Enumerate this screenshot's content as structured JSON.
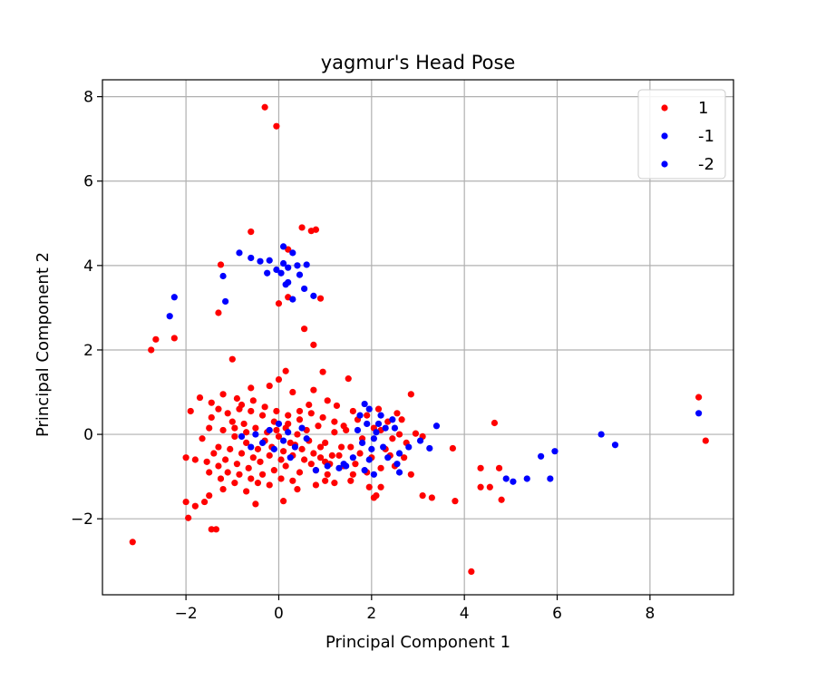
{
  "chart_data": {
    "type": "scatter",
    "title": "yagmur's Head Pose",
    "xlabel": "Principal Component 1",
    "ylabel": "Principal Component 2",
    "xlim": [
      -3.8,
      9.8
    ],
    "ylim": [
      -3.8,
      8.4
    ],
    "xticks": [
      -2,
      0,
      2,
      4,
      6,
      8
    ],
    "yticks": [
      -2,
      0,
      2,
      4,
      6,
      8
    ],
    "grid": true,
    "legend_position": "top-right",
    "series": [
      {
        "name": "1",
        "color": "#ff0000",
        "points": [
          [
            -0.3,
            7.75
          ],
          [
            -0.05,
            7.3
          ],
          [
            -0.6,
            4.8
          ],
          [
            0.5,
            4.9
          ],
          [
            0.7,
            4.82
          ],
          [
            0.8,
            4.85
          ],
          [
            -1.25,
            4.02
          ],
          [
            0.2,
            4.38
          ],
          [
            0.0,
            3.1
          ],
          [
            0.2,
            3.25
          ],
          [
            0.9,
            3.22
          ],
          [
            -1.3,
            2.88
          ],
          [
            0.55,
            2.5
          ],
          [
            0.75,
            2.12
          ],
          [
            -2.65,
            2.25
          ],
          [
            -2.75,
            2.0
          ],
          [
            -2.25,
            2.28
          ],
          [
            -1.0,
            1.78
          ],
          [
            0.95,
            1.48
          ],
          [
            1.5,
            1.32
          ],
          [
            0.15,
            1.5
          ],
          [
            0.0,
            1.3
          ],
          [
            2.85,
            0.95
          ],
          [
            4.65,
            0.27
          ],
          [
            9.05,
            0.88
          ],
          [
            9.2,
            -0.15
          ],
          [
            3.75,
            -0.33
          ],
          [
            3.1,
            -1.45
          ],
          [
            3.3,
            -1.5
          ],
          [
            3.8,
            -1.58
          ],
          [
            4.35,
            -0.8
          ],
          [
            4.35,
            -1.25
          ],
          [
            4.55,
            -1.25
          ],
          [
            4.75,
            -0.8
          ],
          [
            4.8,
            -1.55
          ],
          [
            4.15,
            -3.25
          ],
          [
            -3.15,
            -2.55
          ],
          [
            -1.45,
            -2.25
          ],
          [
            -1.35,
            -2.25
          ],
          [
            -1.95,
            -1.98
          ],
          [
            -2.0,
            -1.6
          ],
          [
            -1.8,
            -1.7
          ],
          [
            -1.6,
            -1.6
          ],
          [
            -1.5,
            -1.45
          ],
          [
            -0.5,
            -1.65
          ],
          [
            0.1,
            -1.58
          ],
          [
            -1.7,
            0.87
          ],
          [
            -1.2,
            0.95
          ],
          [
            -0.9,
            0.85
          ],
          [
            -0.6,
            1.1
          ],
          [
            -0.2,
            1.15
          ],
          [
            0.3,
            1.0
          ],
          [
            0.75,
            1.05
          ],
          [
            1.05,
            0.8
          ],
          [
            1.25,
            0.68
          ],
          [
            1.6,
            0.55
          ],
          [
            2.15,
            0.6
          ],
          [
            2.55,
            0.5
          ],
          [
            2.65,
            0.35
          ],
          [
            2.95,
            0.02
          ],
          [
            3.1,
            -0.05
          ],
          [
            2.2,
            -1.25
          ],
          [
            2.1,
            -1.45
          ],
          [
            2.05,
            -1.5
          ],
          [
            1.95,
            -1.25
          ],
          [
            1.55,
            -1.1
          ],
          [
            1.2,
            -1.15
          ],
          [
            1.0,
            -1.1
          ],
          [
            0.8,
            -1.2
          ],
          [
            0.4,
            -1.3
          ],
          [
            -0.2,
            -1.2
          ],
          [
            -0.7,
            -1.35
          ],
          [
            -1.2,
            -1.3
          ],
          [
            -1.5,
            -0.9
          ],
          [
            -1.8,
            -0.6
          ],
          [
            -2.0,
            -0.55
          ],
          [
            -1.9,
            0.55
          ],
          [
            -1.45,
            0.4
          ],
          [
            -1.5,
            0.15
          ],
          [
            -1.65,
            -0.1
          ],
          [
            -1.3,
            -0.3
          ],
          [
            -1.55,
            -0.65
          ],
          [
            -1.3,
            -0.75
          ],
          [
            -1.1,
            -0.9
          ],
          [
            -0.85,
            -0.95
          ],
          [
            -0.6,
            -1.05
          ],
          [
            -0.35,
            -0.95
          ],
          [
            -0.1,
            -0.85
          ],
          [
            0.15,
            -0.75
          ],
          [
            0.45,
            -0.9
          ],
          [
            0.7,
            -0.7
          ],
          [
            1.0,
            -0.65
          ],
          [
            1.3,
            -0.5
          ],
          [
            1.55,
            -0.3
          ],
          [
            1.8,
            -0.1
          ],
          [
            2.05,
            0.15
          ],
          [
            2.35,
            0.3
          ],
          [
            2.6,
            0.0
          ],
          [
            2.75,
            -0.2
          ],
          [
            2.4,
            -0.5
          ],
          [
            2.2,
            -0.8
          ],
          [
            1.9,
            -0.9
          ],
          [
            1.65,
            -0.7
          ],
          [
            1.4,
            -0.75
          ],
          [
            1.15,
            -0.5
          ],
          [
            0.9,
            -0.3
          ],
          [
            0.65,
            -0.15
          ],
          [
            0.4,
            0.0
          ],
          [
            0.15,
            0.15
          ],
          [
            -0.1,
            0.3
          ],
          [
            -0.35,
            0.45
          ],
          [
            -0.6,
            0.55
          ],
          [
            -0.85,
            0.6
          ],
          [
            -1.1,
            0.5
          ],
          [
            -1.3,
            0.6
          ],
          [
            -1.45,
            0.75
          ],
          [
            -1.0,
            0.3
          ],
          [
            -0.75,
            0.25
          ],
          [
            -0.5,
            0.15
          ],
          [
            -0.25,
            0.05
          ],
          [
            0.0,
            -0.05
          ],
          [
            0.25,
            -0.2
          ],
          [
            0.5,
            -0.35
          ],
          [
            0.75,
            -0.45
          ],
          [
            1.0,
            -0.2
          ],
          [
            1.2,
            0.05
          ],
          [
            1.4,
            0.2
          ],
          [
            1.7,
            0.35
          ],
          [
            1.9,
            0.45
          ],
          [
            2.2,
            0.1
          ],
          [
            2.45,
            -0.1
          ],
          [
            -1.2,
            0.1
          ],
          [
            -0.95,
            -0.05
          ],
          [
            -0.7,
            -0.2
          ],
          [
            -0.45,
            -0.35
          ],
          [
            -0.2,
            -0.5
          ],
          [
            0.05,
            -0.6
          ],
          [
            0.3,
            -0.5
          ],
          [
            0.55,
            -0.6
          ],
          [
            0.8,
            -0.85
          ],
          [
            1.05,
            -0.95
          ],
          [
            -1.4,
            -0.45
          ],
          [
            -1.15,
            -0.6
          ],
          [
            -0.9,
            -0.7
          ],
          [
            -0.65,
            -0.8
          ],
          [
            -0.4,
            -0.65
          ],
          [
            -0.15,
            -0.3
          ],
          [
            0.1,
            -0.4
          ],
          [
            0.35,
            -0.25
          ],
          [
            0.6,
            0.1
          ],
          [
            0.85,
            0.2
          ],
          [
            -0.8,
            0.7
          ],
          [
            -0.55,
            0.8
          ],
          [
            -0.3,
            0.65
          ],
          [
            -0.05,
            0.55
          ],
          [
            0.2,
            0.45
          ],
          [
            0.45,
            0.35
          ],
          [
            0.7,
            0.5
          ],
          [
            0.95,
            0.4
          ],
          [
            1.2,
            0.3
          ],
          [
            1.45,
            0.1
          ],
          [
            -1.05,
            -0.35
          ],
          [
            -0.8,
            -0.45
          ],
          [
            -0.55,
            -0.55
          ],
          [
            -0.3,
            -0.15
          ],
          [
            -0.05,
            0.1
          ],
          [
            0.2,
            0.25
          ],
          [
            0.45,
            0.55
          ],
          [
            0.65,
            0.7
          ],
          [
            -0.95,
            0.15
          ],
          [
            -0.7,
            0.05
          ],
          [
            2.0,
            -0.55
          ],
          [
            2.3,
            -0.35
          ],
          [
            2.5,
            -0.75
          ],
          [
            2.7,
            -0.55
          ],
          [
            2.85,
            -0.95
          ],
          [
            1.75,
            -0.45
          ],
          [
            1.6,
            -0.95
          ],
          [
            1.35,
            -0.3
          ],
          [
            1.1,
            -0.7
          ],
          [
            0.9,
            -0.55
          ],
          [
            -1.25,
            -1.05
          ],
          [
            -0.95,
            -1.15
          ],
          [
            -0.45,
            -1.15
          ],
          [
            0.05,
            -1.05
          ],
          [
            0.3,
            -1.1
          ]
        ]
      },
      {
        "name": "-1",
        "color": "#0000ff",
        "points": [
          [
            0.1,
            4.45
          ],
          [
            0.3,
            4.3
          ],
          [
            -0.85,
            4.3
          ],
          [
            -0.6,
            4.18
          ],
          [
            -0.4,
            4.1
          ],
          [
            -0.2,
            4.12
          ],
          [
            -0.05,
            3.9
          ],
          [
            0.1,
            4.05
          ],
          [
            0.2,
            3.95
          ],
          [
            0.4,
            4.0
          ],
          [
            0.6,
            4.02
          ],
          [
            -0.25,
            3.82
          ],
          [
            0.05,
            3.82
          ],
          [
            0.2,
            3.6
          ],
          [
            0.15,
            3.55
          ],
          [
            0.45,
            3.78
          ],
          [
            0.55,
            3.45
          ],
          [
            0.75,
            3.28
          ],
          [
            0.3,
            3.2
          ],
          [
            -1.15,
            3.15
          ],
          [
            -1.2,
            3.75
          ],
          [
            -2.25,
            3.25
          ],
          [
            -2.35,
            2.8
          ],
          [
            1.85,
            0.72
          ],
          [
            1.95,
            0.6
          ],
          [
            2.2,
            0.45
          ],
          [
            2.45,
            0.35
          ],
          [
            3.4,
            0.2
          ],
          [
            3.05,
            -0.15
          ],
          [
            3.25,
            -0.33
          ],
          [
            2.8,
            -0.3
          ],
          [
            2.6,
            -0.45
          ],
          [
            2.25,
            -0.3
          ],
          [
            2.05,
            -0.1
          ],
          [
            1.8,
            -0.2
          ],
          [
            1.6,
            -0.55
          ],
          [
            1.4,
            -0.7
          ],
          [
            1.85,
            -0.85
          ],
          [
            2.05,
            -0.95
          ],
          [
            2.55,
            -0.7
          ],
          [
            2.6,
            -0.9
          ],
          [
            1.45,
            -0.75
          ],
          [
            1.3,
            -0.8
          ],
          [
            4.9,
            -1.05
          ],
          [
            5.05,
            -1.12
          ],
          [
            5.35,
            -1.05
          ],
          [
            5.65,
            -0.52
          ],
          [
            5.85,
            -1.05
          ],
          [
            5.95,
            -0.4
          ],
          [
            6.95,
            0.0
          ],
          [
            7.25,
            -0.25
          ],
          [
            9.05,
            0.5
          ],
          [
            -0.8,
            -0.05
          ],
          [
            -0.5,
            0.0
          ],
          [
            -0.2,
            0.1
          ],
          [
            0.1,
            -0.15
          ],
          [
            0.35,
            -0.3
          ],
          [
            -0.1,
            -0.35
          ],
          [
            0.2,
            0.05
          ],
          [
            0.5,
            0.15
          ],
          [
            -0.35,
            -0.2
          ],
          [
            0.6,
            -0.1
          ],
          [
            0.0,
            0.25
          ],
          [
            0.25,
            -0.55
          ],
          [
            0.8,
            -0.85
          ],
          [
            1.05,
            -0.75
          ],
          [
            -0.6,
            -0.3
          ]
        ]
      },
      {
        "name": "-2",
        "color": "#0000ff",
        "points": [
          [
            1.9,
            0.25
          ],
          [
            2.1,
            0.05
          ],
          [
            2.3,
            0.15
          ],
          [
            1.7,
            0.1
          ],
          [
            2.0,
            -0.35
          ],
          [
            2.35,
            -0.55
          ],
          [
            1.95,
            -0.6
          ],
          [
            1.75,
            0.45
          ],
          [
            2.15,
            0.25
          ],
          [
            2.5,
            0.15
          ]
        ]
      }
    ]
  }
}
